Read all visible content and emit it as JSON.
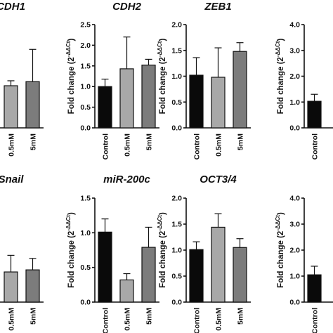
{
  "chart_data": [
    {
      "type": "bar",
      "title": "CDH1",
      "ylabel": "",
      "ylim": [
        0,
        2.5
      ],
      "yticks": [],
      "categories": [
        "",
        "0.5mM",
        "5mM"
      ],
      "values": [
        null,
        1.02,
        1.12
      ],
      "errors": [
        null,
        0.12,
        0.78
      ],
      "colors": [
        "#0a0a0a",
        "#a8a8a8",
        "#7c7c7c"
      ],
      "show_yticks": false
    },
    {
      "type": "bar",
      "title": "CDH2",
      "ylabel": "Fold change (2",
      "ylabel_sup": "-ΔΔCt",
      "ylabel_end": ")",
      "ylim": [
        0,
        2.5
      ],
      "yticks": [
        "0.0",
        "0.5",
        "1.0",
        "1.5",
        "2.0",
        "2.5"
      ],
      "categories": [
        "Control",
        "0.5mM",
        "5mM"
      ],
      "values": [
        1.0,
        1.43,
        1.52
      ],
      "errors": [
        0.18,
        0.77,
        0.14
      ],
      "colors": [
        "#0a0a0a",
        "#a8a8a8",
        "#7c7c7c"
      ],
      "show_yticks": true
    },
    {
      "type": "bar",
      "title": "ZEB1",
      "ylabel": "Fold change (2",
      "ylabel_sup": "-ΔΔCt",
      "ylabel_end": ")",
      "ylim": [
        0,
        2.0
      ],
      "yticks": [
        "0.0",
        "0.5",
        "1.0",
        "1.5",
        "2.0"
      ],
      "categories": [
        "Control",
        "0.5mM",
        "5mM"
      ],
      "values": [
        1.02,
        0.98,
        1.48
      ],
      "errors": [
        0.34,
        0.57,
        0.17
      ],
      "colors": [
        "#0a0a0a",
        "#a8a8a8",
        "#7c7c7c"
      ],
      "show_yticks": true
    },
    {
      "type": "bar",
      "title": "",
      "ylabel": "Fold change (2",
      "ylabel_sup": "-ΔΔCt",
      "ylabel_end": ")",
      "ylim": [
        0,
        4.0
      ],
      "yticks": [
        "0.0",
        "1.0",
        "2.0",
        "3.0",
        "4.0"
      ],
      "categories": [
        "Control",
        "",
        ""
      ],
      "values": [
        1.03,
        null,
        null
      ],
      "errors": [
        0.27,
        null,
        null
      ],
      "colors": [
        "#0a0a0a",
        "#a8a8a8",
        "#7c7c7c"
      ],
      "show_yticks": true
    },
    {
      "type": "bar",
      "title": "Snail",
      "ylabel": "",
      "ylim": [
        0,
        2.0
      ],
      "yticks": [],
      "categories": [
        "",
        "0.5mM",
        "5mM"
      ],
      "values": [
        null,
        0.58,
        0.62
      ],
      "errors": [
        null,
        0.32,
        0.22
      ],
      "colors": [
        "#0a0a0a",
        "#a8a8a8",
        "#7c7c7c"
      ],
      "show_yticks": false
    },
    {
      "type": "bar",
      "title": "miR-200c",
      "ylabel": "Fold change (2",
      "ylabel_sup": "-ΔΔCt",
      "ylabel_end": ")",
      "ylim": [
        0,
        1.5
      ],
      "yticks": [
        "0.0",
        "0.5",
        "1.0",
        "1.5"
      ],
      "categories": [
        "Control",
        "0.5mM",
        "5mM"
      ],
      "values": [
        1.01,
        0.32,
        0.79
      ],
      "errors": [
        0.19,
        0.09,
        0.29
      ],
      "colors": [
        "#0a0a0a",
        "#a8a8a8",
        "#7c7c7c"
      ],
      "show_yticks": true
    },
    {
      "type": "bar",
      "title": "OCT3/4",
      "ylabel": "Fold change (2",
      "ylabel_sup": "-ΔΔCt",
      "ylabel_end": ")",
      "ylim": [
        0,
        2.0
      ],
      "yticks": [
        "0.0",
        "0.5",
        "1.0",
        "1.5",
        "2.0"
      ],
      "categories": [
        "Control",
        "0.5mM",
        "5mM"
      ],
      "values": [
        1.01,
        1.44,
        1.05
      ],
      "errors": [
        0.15,
        0.26,
        0.17
      ],
      "colors": [
        "#0a0a0a",
        "#a8a8a8",
        "#7c7c7c"
      ],
      "show_yticks": true
    },
    {
      "type": "bar",
      "title": "",
      "ylabel": "Fold change (2",
      "ylabel_sup": "-ΔΔCt",
      "ylabel_end": ")",
      "ylim": [
        0,
        4.0
      ],
      "yticks": [
        "0.0",
        "1.0",
        "2.0",
        "3.0",
        "4.0"
      ],
      "categories": [
        "Control",
        "",
        ""
      ],
      "values": [
        1.05,
        null,
        null
      ],
      "errors": [
        0.33,
        null,
        null
      ],
      "colors": [
        "#0a0a0a",
        "#a8a8a8",
        "#7c7c7c"
      ],
      "show_yticks": true
    }
  ]
}
